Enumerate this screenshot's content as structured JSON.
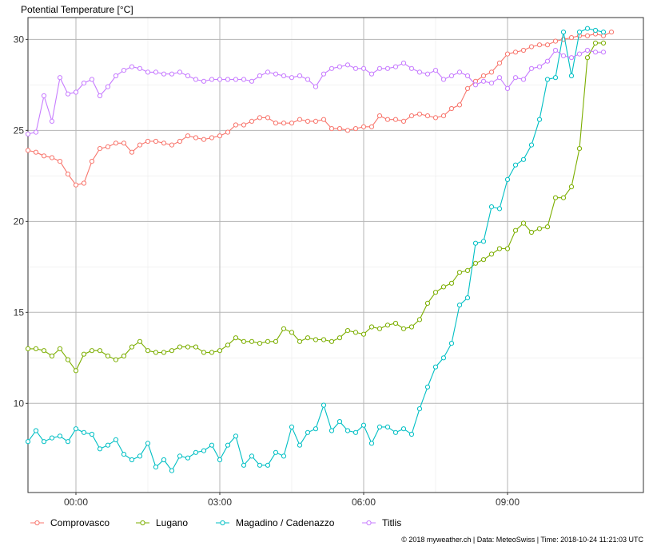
{
  "chart_data": {
    "type": "line",
    "ylabel": "Potential Temperature [°C]",
    "xlabel": "",
    "x_ticks": [
      {
        "label": "00:00",
        "t": 0
      },
      {
        "label": "03:00",
        "t": 180
      },
      {
        "label": "06:00",
        "t": 360
      },
      {
        "label": "09:00",
        "t": 540
      }
    ],
    "x_range_minutes": [
      -60,
      710
    ],
    "ylim": [
      5.1,
      31.2
    ],
    "y_ticks": [
      10,
      15,
      20,
      25,
      30
    ],
    "grid": true,
    "legend_position": "bottom",
    "sample_interval_minutes": 10,
    "series": [
      {
        "name": "Comprovasco",
        "color": "#F8766D",
        "start_minute": -60,
        "values": [
          23.9,
          23.8,
          23.6,
          23.5,
          23.3,
          22.6,
          22.0,
          22.1,
          23.3,
          24.0,
          24.1,
          24.3,
          24.3,
          23.8,
          24.2,
          24.4,
          24.4,
          24.3,
          24.2,
          24.4,
          24.7,
          24.6,
          24.5,
          24.6,
          24.7,
          24.9,
          25.3,
          25.3,
          25.5,
          25.7,
          25.7,
          25.4,
          25.4,
          25.4,
          25.6,
          25.5,
          25.5,
          25.6,
          25.1,
          25.1,
          25.0,
          25.1,
          25.2,
          25.2,
          25.8,
          25.6,
          25.6,
          25.5,
          25.8,
          25.9,
          25.8,
          25.7,
          25.8,
          26.2,
          26.4,
          27.3,
          27.7,
          28.0,
          28.2,
          28.7,
          29.2,
          29.3,
          29.4,
          29.6,
          29.7,
          29.7,
          29.9,
          30.0,
          30.1,
          30.2,
          30.2,
          30.3,
          30.2,
          30.4
        ]
      },
      {
        "name": "Lugano",
        "color": "#7CAE00",
        "start_minute": -60,
        "values": [
          13.0,
          13.0,
          12.9,
          12.6,
          13.0,
          12.4,
          11.8,
          12.7,
          12.9,
          12.9,
          12.6,
          12.4,
          12.6,
          13.1,
          13.4,
          12.9,
          12.8,
          12.8,
          12.9,
          13.1,
          13.1,
          13.1,
          12.8,
          12.8,
          12.9,
          13.2,
          13.6,
          13.4,
          13.4,
          13.3,
          13.4,
          13.4,
          14.1,
          13.9,
          13.4,
          13.6,
          13.5,
          13.5,
          13.4,
          13.6,
          14.0,
          13.9,
          13.8,
          14.2,
          14.1,
          14.3,
          14.4,
          14.1,
          14.2,
          14.6,
          15.5,
          16.1,
          16.4,
          16.6,
          17.2,
          17.3,
          17.7,
          17.9,
          18.2,
          18.5,
          18.5,
          19.5,
          19.9,
          19.4,
          19.6,
          19.7,
          21.3,
          21.3,
          21.9,
          24.0,
          29.0,
          29.8,
          29.8
        ]
      },
      {
        "name": "Magadino / Cadenazzo",
        "color": "#00BFC4",
        "start_minute": -60,
        "values": [
          7.9,
          8.5,
          7.9,
          8.1,
          8.2,
          7.9,
          8.6,
          8.4,
          8.3,
          7.5,
          7.7,
          8.0,
          7.2,
          6.9,
          7.1,
          7.8,
          6.5,
          6.9,
          6.3,
          7.1,
          7.0,
          7.3,
          7.4,
          7.7,
          6.9,
          7.7,
          8.2,
          6.6,
          7.1,
          6.6,
          6.6,
          7.3,
          7.1,
          8.7,
          7.7,
          8.4,
          8.6,
          9.9,
          8.5,
          9.0,
          8.5,
          8.4,
          8.8,
          7.8,
          8.7,
          8.7,
          8.4,
          8.6,
          8.3,
          9.7,
          10.9,
          12.0,
          12.5,
          13.3,
          15.4,
          15.8,
          18.8,
          18.9,
          20.8,
          20.7,
          22.3,
          23.1,
          23.4,
          24.2,
          25.6,
          27.8,
          27.9,
          30.4,
          28.0,
          30.4,
          30.6,
          30.5,
          30.4
        ]
      },
      {
        "name": "Titlis",
        "color": "#C77CFF",
        "start_minute": -60,
        "values": [
          24.8,
          24.9,
          26.9,
          25.5,
          27.9,
          27.0,
          27.1,
          27.6,
          27.8,
          26.9,
          27.4,
          28.0,
          28.3,
          28.5,
          28.4,
          28.2,
          28.2,
          28.1,
          28.1,
          28.2,
          28.0,
          27.8,
          27.7,
          27.8,
          27.8,
          27.8,
          27.8,
          27.8,
          27.7,
          28.0,
          28.2,
          28.1,
          28.0,
          27.9,
          28.0,
          27.8,
          27.4,
          28.1,
          28.4,
          28.5,
          28.6,
          28.4,
          28.4,
          28.1,
          28.4,
          28.4,
          28.5,
          28.7,
          28.4,
          28.2,
          28.1,
          28.3,
          27.8,
          28.0,
          28.2,
          28.0,
          27.5,
          27.7,
          27.6,
          27.9,
          27.3,
          27.9,
          27.8,
          28.4,
          28.5,
          28.8,
          29.4,
          29.1,
          29.0,
          29.2,
          29.4,
          29.3,
          29.3
        ]
      }
    ]
  },
  "legend": {
    "items": [
      "Comprovasco",
      "Lugano",
      "Magadino / Cadenazzo",
      "Titlis"
    ]
  },
  "credit": "© 2018 myweather.ch | Data: MeteoSwiss | Time: 2018-10-24 11:21:03 UTC"
}
